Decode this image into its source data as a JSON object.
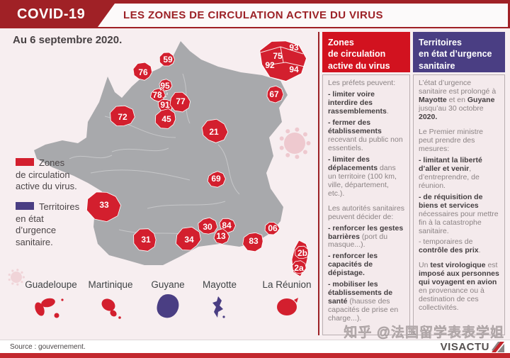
{
  "header": {
    "badge": "COVID-19",
    "title": "LES ZONES DE CIRCULATION ACTIVE DU VIRUS"
  },
  "date_label": "Au 6 septembre 2020.",
  "colors": {
    "dark_red": "#a02126",
    "zone_red": "#d31f2e",
    "emergency_purple": "#4a3e83",
    "land_gray": "#a8a9ac",
    "background_pink": "#f7eef0"
  },
  "legend": {
    "zones": {
      "lines": [
        "Zones",
        "de circulation",
        "active du virus."
      ]
    },
    "territories": {
      "lines": [
        "Territoires",
        "en état",
        "d’urgence",
        "sanitaire."
      ]
    }
  },
  "map": {
    "departments": [
      "59",
      "76",
      "95",
      "78",
      "91",
      "77",
      "45",
      "72",
      "21",
      "67",
      "69",
      "33",
      "31",
      "34",
      "30",
      "84",
      "13",
      "83",
      "06",
      "2b",
      "2a"
    ],
    "inset_departments": [
      "93",
      "75",
      "92",
      "94"
    ]
  },
  "territories": [
    {
      "name": "Guadeloupe",
      "status": "active"
    },
    {
      "name": "Martinique",
      "status": "active"
    },
    {
      "name": "Guyane",
      "status": "emergency"
    },
    {
      "name": "Mayotte",
      "status": "emergency"
    },
    {
      "name": "La Réunion",
      "status": "active"
    }
  ],
  "panels": {
    "red": {
      "title_lines": [
        "Zones",
        "de circulation",
        "active du virus"
      ],
      "paragraphs": [
        {
          "sp": false,
          "runs": [
            {
              "t": "Les préfets peuvent:",
              "b": false
            }
          ]
        },
        {
          "sp": false,
          "runs": [
            {
              "t": "- limiter voire interdire des rassemblements",
              "b": true
            },
            {
              "t": ".",
              "b": false
            }
          ]
        },
        {
          "sp": false,
          "runs": [
            {
              "t": "- fermer des établissements",
              "b": true
            },
            {
              "t": " recevant du public non essentiels.",
              "b": false
            }
          ]
        },
        {
          "sp": false,
          "runs": [
            {
              "t": "- limiter des déplacements",
              "b": true
            },
            {
              "t": " dans un territoire (100 km, ville, département, etc.).",
              "b": false
            }
          ]
        },
        {
          "sp": true,
          "runs": [
            {
              "t": "Les autorités sanitaires peuvent décider de:",
              "b": false
            }
          ]
        },
        {
          "sp": false,
          "runs": [
            {
              "t": "- renforcer les gestes barrières",
              "b": true
            },
            {
              "t": " (port du masque...).",
              "b": false
            }
          ]
        },
        {
          "sp": false,
          "runs": [
            {
              "t": "- renforcer les capacités de dépistage.",
              "b": true
            }
          ]
        },
        {
          "sp": false,
          "runs": [
            {
              "t": "- mobiliser les établissements de santé",
              "b": true
            },
            {
              "t": " (hausse des capacités de prise en charge...).",
              "b": false
            }
          ]
        }
      ]
    },
    "purple": {
      "title_lines": [
        "Territoires",
        "en état d’urgence",
        "sanitaire"
      ],
      "paragraphs": [
        {
          "sp": false,
          "runs": [
            {
              "t": "L’état d’urgence sanitaire est prolongé à ",
              "b": false
            },
            {
              "t": "Mayotte",
              "b": true
            },
            {
              "t": " et en ",
              "b": false
            },
            {
              "t": "Guyane",
              "b": true
            },
            {
              "t": " jusqu’au 30 octobre ",
              "b": false
            },
            {
              "t": "2020.",
              "b": true
            }
          ]
        },
        {
          "sp": true,
          "runs": [
            {
              "t": "Le Premier ministre peut prendre des mesures:",
              "b": false
            }
          ]
        },
        {
          "sp": false,
          "runs": [
            {
              "t": "- limitant la liberté d’aller et venir",
              "b": true
            },
            {
              "t": ", d’entreprendre, de réunion.",
              "b": false
            }
          ]
        },
        {
          "sp": false,
          "runs": [
            {
              "t": "- de réquisition de biens et services",
              "b": true
            },
            {
              "t": " nécessaires pour mettre fin à la catastrophe sanitaire.",
              "b": false
            }
          ]
        },
        {
          "sp": false,
          "runs": [
            {
              "t": "- temporaires de ",
              "b": false
            },
            {
              "t": "contrôle des prix",
              "b": true
            },
            {
              "t": ".",
              "b": false
            }
          ]
        },
        {
          "sp": true,
          "runs": [
            {
              "t": "Un ",
              "b": false
            },
            {
              "t": "test virologique",
              "b": true
            },
            {
              "t": " est ",
              "b": false
            },
            {
              "t": "imposé aux personnes qui voyagent en avion",
              "b": true
            },
            {
              "t": " en provenance ou à destination de ces collectivités.",
              "b": false
            }
          ]
        }
      ]
    }
  },
  "footer": {
    "source": "Source : gouvernement.",
    "brand": "VISACTU"
  },
  "watermark": "知乎 @法国留学表表学姐"
}
